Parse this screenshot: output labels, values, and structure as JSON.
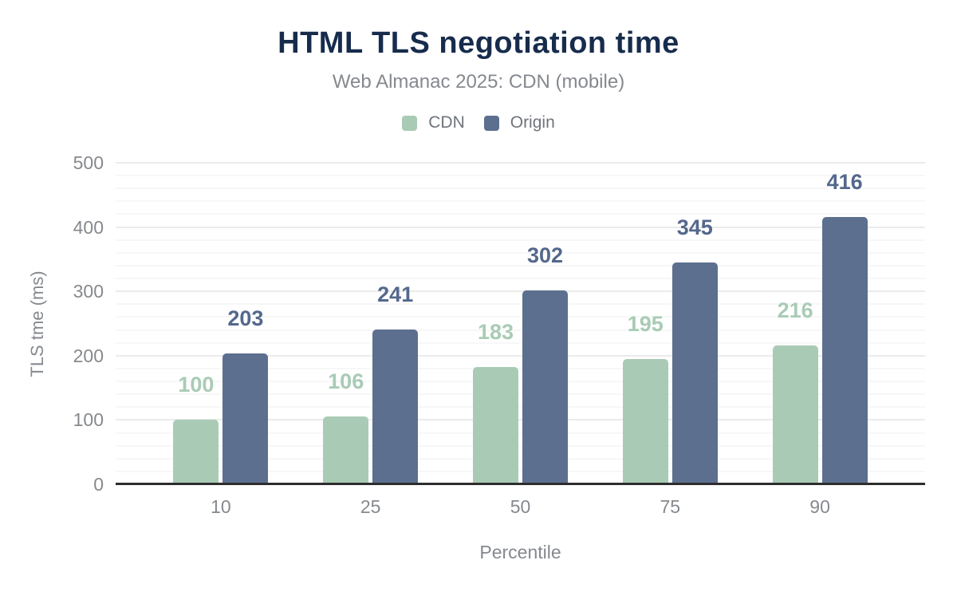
{
  "header": {
    "title": "HTML TLS negotiation time",
    "subtitle": "Web Almanac 2025: CDN (mobile)"
  },
  "colors": {
    "title": "#172c4c",
    "axis_text": "#85898e",
    "legend_text": "#6f747a",
    "axis_line": "#2d2d2d",
    "cdn_green": "#a9cbb5",
    "origin_slate": "#5c6f8f"
  },
  "chart_data": {
    "type": "bar",
    "title": "HTML TLS negotiation time",
    "subtitle": "Web Almanac 2025: CDN (mobile)",
    "categories": [
      "10",
      "25",
      "50",
      "75",
      "90"
    ],
    "series": [
      {
        "name": "CDN",
        "color": "#a9cbb5",
        "label_color": "#a9cbb5",
        "values": [
          100,
          106,
          183,
          195,
          216
        ]
      },
      {
        "name": "Origin",
        "color": "#5c6f8f",
        "label_color": "#54688c",
        "values": [
          203,
          241,
          302,
          345,
          416
        ]
      }
    ],
    "xlabel": "Percentile",
    "ylabel": "TLS tme (ms)",
    "ylim": [
      0,
      500
    ],
    "yticks": [
      0,
      100,
      200,
      300,
      400,
      500
    ],
    "grid": {
      "major_step": 100,
      "minor_step": 20,
      "orientation": "horizontal"
    },
    "legend_position": "top",
    "bar_value_labels": true
  }
}
